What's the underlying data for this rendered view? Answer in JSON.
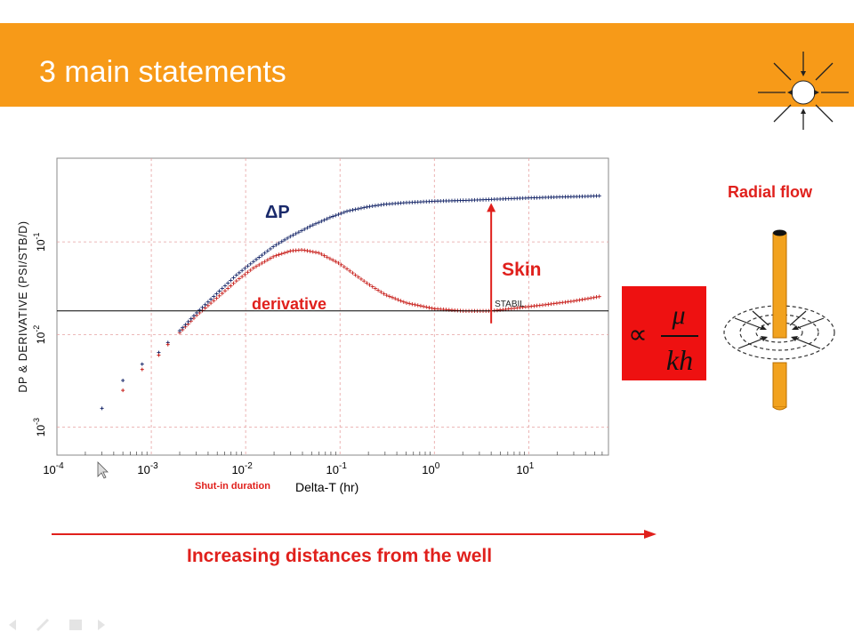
{
  "slide": {
    "title": "3 main statements",
    "x_caption": "Delta-T (hr)",
    "shutin_caption": "Shut-in duration",
    "bottom_text": "Increasing distances from the well",
    "radial_flow_title": "Radial flow",
    "formula_prefix": "∝",
    "formula_numerator": "μ",
    "formula_denominator": "kh",
    "colors": {
      "banner": "#f79a18",
      "accent_red": "#e0201c",
      "formula_box": "#ee1111",
      "delta_p": "#1a2a6b",
      "derivative": "#c8201c"
    },
    "icons": [
      "sun-rays-icon",
      "cursor-icon",
      "prev-slide-icon",
      "pen-icon",
      "menu-icon",
      "next-slide-icon"
    ]
  },
  "chart_data": {
    "type": "scatter",
    "xscale": "log",
    "yscale": "log",
    "xlim": [
      0.0001,
      70
    ],
    "ylim": [
      0.0005,
      0.8
    ],
    "xticks": [
      "10^-4",
      "10^-3",
      "10^-2",
      "10^-1",
      "10^0",
      "10^1"
    ],
    "yticks": [
      "10^-3",
      "10^-2",
      "10^-1"
    ],
    "ylabel": "DP & DERIVATIVE (PSI/STB/D)",
    "xlabel": "Delta-T (hr)",
    "grid": true,
    "series": [
      {
        "name": "ΔP",
        "x": [
          0.0003,
          0.0005,
          0.0008,
          0.0012,
          0.0015,
          0.002,
          0.003,
          0.005,
          0.008,
          0.012,
          0.02,
          0.03,
          0.05,
          0.08,
          0.12,
          0.2,
          0.3,
          0.5,
          1,
          2,
          5,
          10,
          20,
          40,
          60
        ],
        "y": [
          0.0016,
          0.0032,
          0.0048,
          0.0064,
          0.0082,
          0.011,
          0.017,
          0.028,
          0.044,
          0.061,
          0.09,
          0.115,
          0.15,
          0.185,
          0.215,
          0.24,
          0.255,
          0.265,
          0.275,
          0.28,
          0.29,
          0.298,
          0.305,
          0.31,
          0.315
        ]
      },
      {
        "name": "derivative",
        "x": [
          0.0005,
          0.0008,
          0.0012,
          0.0015,
          0.002,
          0.003,
          0.005,
          0.008,
          0.012,
          0.02,
          0.03,
          0.04,
          0.06,
          0.1,
          0.15,
          0.2,
          0.3,
          0.5,
          1,
          2,
          4,
          8,
          15,
          30,
          60
        ],
        "y": [
          0.0025,
          0.0042,
          0.006,
          0.0078,
          0.0105,
          0.016,
          0.025,
          0.038,
          0.052,
          0.07,
          0.08,
          0.082,
          0.076,
          0.058,
          0.043,
          0.035,
          0.027,
          0.022,
          0.019,
          0.018,
          0.018,
          0.0195,
          0.021,
          0.023,
          0.026
        ]
      }
    ],
    "annotations": {
      "delta_p_label": "ΔP",
      "derivative_label": "derivative",
      "skin_label": "Skin",
      "stabil_label": "STABIL",
      "stabil_level": 0.018,
      "skin_x": 4
    }
  }
}
